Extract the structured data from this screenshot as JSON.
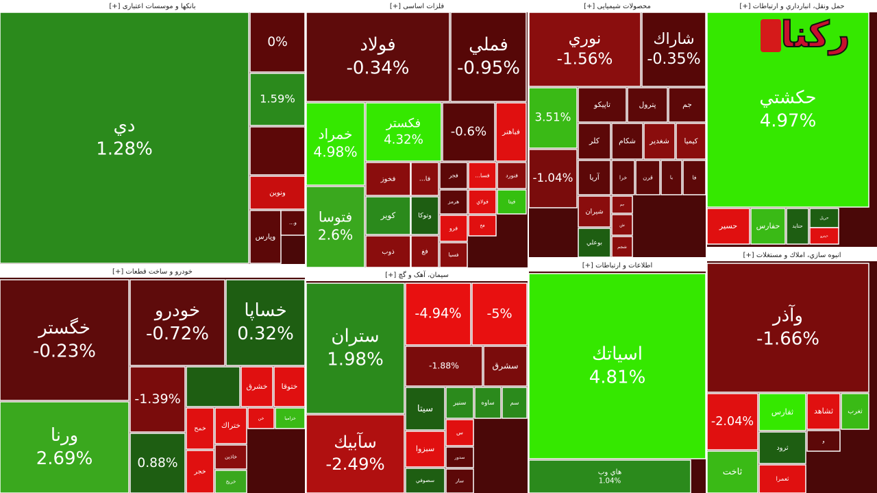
{
  "chart_data": {
    "type": "treemap",
    "watermark": "رکنا",
    "groups": [
      {
        "name": "بانکها و موسسات اعتباری [+]",
        "tiles": [
          {
            "name": "دي",
            "value": 1.28,
            "value_label": "1.28%",
            "color": "#2b8a1c"
          },
          {
            "value": 0,
            "value_label": "0%",
            "color": "#5c0808"
          },
          {
            "value": 1.59,
            "value_label": "1.59%",
            "color": "#2b8a1c"
          },
          {
            "color": "#5c0808"
          },
          {
            "name": "ونوين",
            "color": "#c80e0e"
          },
          {
            "name": "وپارس",
            "color": "#5c0808"
          },
          {
            "name": "و...",
            "color": "#5c0808"
          }
        ]
      },
      {
        "name": "فلزات اساسی [+]",
        "tiles": [
          {
            "name": "فولاد",
            "value": -0.34,
            "value_label": "-0.34%",
            "color": "#5e0b0b"
          },
          {
            "name": "فملي",
            "value": -0.95,
            "value_label": "-0.95%",
            "color": "#560707"
          },
          {
            "name": "خمراد",
            "value": 4.98,
            "value_label": "4.98%",
            "color": "#35e800"
          },
          {
            "name": "فكستر",
            "value": 4.32,
            "value_label": "4.32%",
            "color": "#35e800"
          },
          {
            "value": -0.6,
            "value_label": "-0.6%",
            "color": "#560707"
          },
          {
            "name": "فباهنر",
            "color": "#e01010"
          },
          {
            "name": "فتوسا",
            "value": 2.6,
            "value_label": "2.6%",
            "color": "#3aa81e"
          },
          {
            "name": "فخوز",
            "color": "#8a0d0d"
          },
          {
            "name": "فا...",
            "color": "#8a0d0d"
          },
          {
            "name": "فجر",
            "color": "#5c0808"
          },
          {
            "name": "فسا...",
            "color": "#e01010"
          },
          {
            "name": "فنورد",
            "color": "#8a0d0d"
          },
          {
            "name": "كوير",
            "color": "#2b8a1c"
          },
          {
            "name": "وتوكا",
            "color": "#1e5e12"
          },
          {
            "name": "هرمز",
            "color": "#5c0808"
          },
          {
            "name": "فولاي",
            "color": "#e01010"
          },
          {
            "name": "فيتا",
            "color": "#35c010"
          },
          {
            "name": "ذوب",
            "color": "#8a0d0d"
          },
          {
            "name": "فغ",
            "color": "#8a0d0d"
          },
          {
            "name": "فرو",
            "color": "#e01010"
          },
          {
            "name": "فسيا",
            "color": "#8a0d0d"
          },
          {
            "name": "فخ",
            "color": "#e01010"
          }
        ]
      },
      {
        "name": "محصولات شیمیایی [+]",
        "tiles": [
          {
            "name": "نوري",
            "value": -1.56,
            "value_label": "-1.56%",
            "color": "#8a0e0e"
          },
          {
            "name": "شاراك",
            "value": -0.35,
            "value_label": "-0.35%",
            "color": "#560707"
          },
          {
            "value": 3.51,
            "value_label": "3.51%",
            "color": "#3aba16"
          },
          {
            "name": "تاپيكو",
            "color": "#5c0808"
          },
          {
            "name": "پترول",
            "color": "#5c0808"
          },
          {
            "name": "جم",
            "color": "#5c0808"
          },
          {
            "name": "كلر",
            "color": "#5c0808"
          },
          {
            "name": "شكام",
            "color": "#5c0808"
          },
          {
            "name": "شغدير",
            "color": "#8a0d0d"
          },
          {
            "name": "كيميا",
            "color": "#8a0d0d"
          },
          {
            "value": -1.04,
            "value_label": "-1.04%",
            "color": "#7a0c0c"
          },
          {
            "name": "آريا",
            "color": "#5c0808"
          },
          {
            "name": "خرا",
            "color": "#5c0808"
          },
          {
            "name": "قرن",
            "color": "#5c0808"
          },
          {
            "name": "يا",
            "color": "#5c0808"
          },
          {
            "name": "فا",
            "color": "#5c0808"
          },
          {
            "name": "شيران",
            "color": "#8a0d0d"
          },
          {
            "name": "بوعلي",
            "color": "#1e5e12"
          },
          {
            "name": "جم",
            "color": "#8a0d0d"
          },
          {
            "name": "ش",
            "color": "#8a0d0d"
          },
          {
            "name": "شجم",
            "color": "#8a0d0d"
          }
        ]
      },
      {
        "name": "حمل ونقل، انبارداري و ارتباطات [+]",
        "tiles": [
          {
            "name": "حكشتي",
            "value": 4.97,
            "value_label": "4.97%",
            "color": "#35e800"
          },
          {
            "name": "حسير",
            "color": "#e01010"
          },
          {
            "name": "حفارس",
            "color": "#3aba16"
          },
          {
            "name": "حتايد",
            "color": "#1e5e12"
          },
          {
            "name": "حريل",
            "color": "#1e5e12"
          },
          {
            "name": "حيترو",
            "color": "#e01010"
          }
        ]
      },
      {
        "name": "خودرو و ساخت قطعات [+]",
        "tiles": [
          {
            "name": "خگستر",
            "value": -0.23,
            "value_label": "-0.23%",
            "color": "#5e0b0b"
          },
          {
            "name": "خودرو",
            "value": -0.72,
            "value_label": "-0.72%",
            "color": "#5e0b0b"
          },
          {
            "name": "خساپا",
            "value": 0.32,
            "value_label": "0.32%",
            "color": "#1e5e12"
          },
          {
            "name": "ورنا",
            "value": 2.69,
            "value_label": "2.69%",
            "color": "#3aa81e"
          },
          {
            "value": -1.39,
            "value_label": "-1.39%",
            "color": "#7a0c0c"
          },
          {
            "value": 0.88,
            "value_label": "0.88%",
            "color": "#1e5e12"
          },
          {
            "color": "#1e5e12"
          },
          {
            "name": "خشرق",
            "color": "#e01010"
          },
          {
            "name": "ختوقا",
            "color": "#e01010"
          },
          {
            "name": "خمح",
            "color": "#e01010"
          },
          {
            "name": "ختراك",
            "color": "#e01010"
          },
          {
            "name": "خن",
            "color": "#e01010"
          },
          {
            "name": "خزاميا",
            "color": "#3aba16"
          },
          {
            "name": "خاذين",
            "color": "#8a0d0d"
          },
          {
            "name": "خريخ",
            "color": "#3aa81e"
          },
          {
            "name": "خجر",
            "color": "#e01010"
          }
        ]
      },
      {
        "name": "سیمان، آهک و گچ [+]",
        "tiles": [
          {
            "name": "ستران",
            "value": 1.98,
            "value_label": "1.98%",
            "color": "#2b8a1c"
          },
          {
            "name": "سآبيك",
            "value": -2.49,
            "value_label": "-2.49%",
            "color": "#b01010"
          },
          {
            "value": -4.94,
            "value_label": "-4.94%",
            "color": "#e81010"
          },
          {
            "value": -5,
            "value_label": "-5%",
            "color": "#e81010"
          },
          {
            "value": -1.88,
            "value_label": "-1.88%",
            "color": "#7a0c0c"
          },
          {
            "name": "سشرق",
            "color": "#7a0c0c"
          },
          {
            "name": "سيتا",
            "color": "#1e5e12"
          },
          {
            "name": "سنير",
            "color": "#2b8a1c"
          },
          {
            "name": "ساوه",
            "color": "#2b8a1c"
          },
          {
            "name": "سم",
            "color": "#2b8a1c"
          },
          {
            "name": "سبزوا",
            "color": "#e01010"
          },
          {
            "name": "س",
            "color": "#e01010"
          },
          {
            "name": "سدور",
            "color": "#5c0808"
          },
          {
            "name": "سصوفي",
            "color": "#1e5e12"
          },
          {
            "name": "سار",
            "color": "#5c0808"
          }
        ]
      },
      {
        "name": "اطلاعات و ارتباطات [+]",
        "tiles": [
          {
            "name": "اسياتك",
            "value": 4.81,
            "value_label": "4.81%",
            "color": "#35e800"
          },
          {
            "name": "هاي وب",
            "value": 1.04,
            "value_label": "1.04%",
            "color": "#2b8a1c"
          }
        ]
      },
      {
        "name": "انبوه سازي، املاك و مستغلات [+]",
        "tiles": [
          {
            "name": "وآذر",
            "value": -1.66,
            "value_label": "-1.66%",
            "color": "#7a0c0c"
          },
          {
            "value": -2.04,
            "value_label": "-2.04%",
            "color": "#e01010"
          },
          {
            "name": "ثفارس",
            "color": "#35e800"
          },
          {
            "name": "ثشاهد",
            "color": "#e01010"
          },
          {
            "name": "ثغرب",
            "color": "#3aba16"
          },
          {
            "name": "ثرود",
            "color": "#1e5e12"
          },
          {
            "name": "ثاخت",
            "color": "#3aba16"
          },
          {
            "name": "ثعمرا",
            "color": "#e01010"
          },
          {
            "name": "و",
            "color": "#5c0808"
          }
        ]
      }
    ]
  }
}
